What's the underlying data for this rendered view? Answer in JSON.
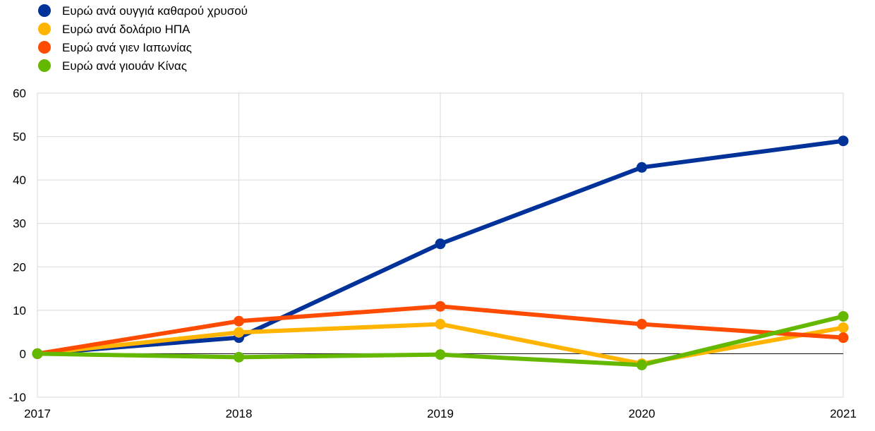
{
  "chart_data": {
    "type": "line",
    "title": "",
    "xlabel": "",
    "ylabel": "",
    "x": [
      "2017",
      "2018",
      "2019",
      "2020",
      "2021"
    ],
    "ylim": [
      -10,
      60
    ],
    "yticks": [
      -10,
      0,
      10,
      20,
      30,
      40,
      50,
      60
    ],
    "grid": true,
    "legend_position": "top-left",
    "series": [
      {
        "name": "Ευρώ ανά ουγγιά καθαρού χρυσού",
        "color": "#003299",
        "values": [
          0,
          3.7,
          25.3,
          42.9,
          49.0
        ]
      },
      {
        "name": "Ευρώ ανά δολάριο ΗΠΑ",
        "color": "#FFB400",
        "values": [
          0,
          4.9,
          6.8,
          -2.3,
          6.0
        ]
      },
      {
        "name": "Ευρώ ανά γιεν Ιαπωνίας",
        "color": "#FF4B00",
        "values": [
          0,
          7.5,
          10.9,
          6.8,
          3.7
        ]
      },
      {
        "name": "Ευρώ ανά γιουάν Κίνας",
        "color": "#65B800",
        "values": [
          0,
          -0.8,
          -0.2,
          -2.6,
          8.6
        ]
      }
    ]
  }
}
